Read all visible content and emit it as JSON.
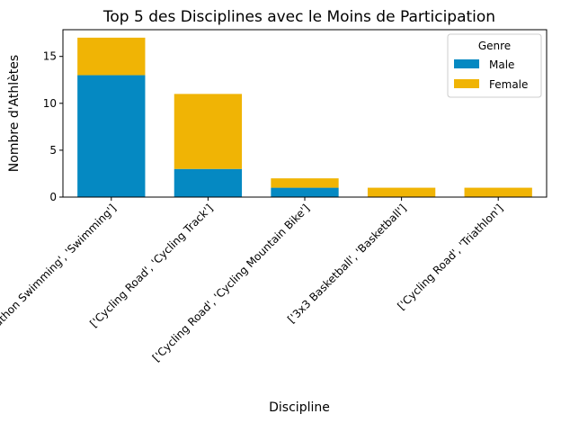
{
  "chart_data": {
    "type": "bar",
    "stacked": true,
    "title": "Top 5 des Disciplines avec le Moins de Participation",
    "xlabel": "Discipline",
    "ylabel": "Nombre d'Athlètes",
    "categories": [
      "['Marathon Swimming', 'Swimming']",
      "['Cycling Road', 'Cycling Track']",
      "['Cycling Road', 'Cycling Mountain Bike']",
      "['3x3 Basketball', 'Basketball']",
      "['Cycling Road', 'Triathlon']"
    ],
    "series": [
      {
        "name": "Male",
        "values": [
          13,
          3,
          1,
          0,
          0
        ],
        "color": "#0589C2"
      },
      {
        "name": "Female",
        "values": [
          4,
          8,
          1,
          1,
          1
        ],
        "color": "#F0B405"
      }
    ],
    "ylim": [
      0,
      17.85
    ],
    "yticks": [
      0,
      5,
      10,
      15
    ],
    "legend": {
      "title": "Genre",
      "placement": "top-right"
    },
    "grid": false,
    "tick_rotation": 45
  }
}
